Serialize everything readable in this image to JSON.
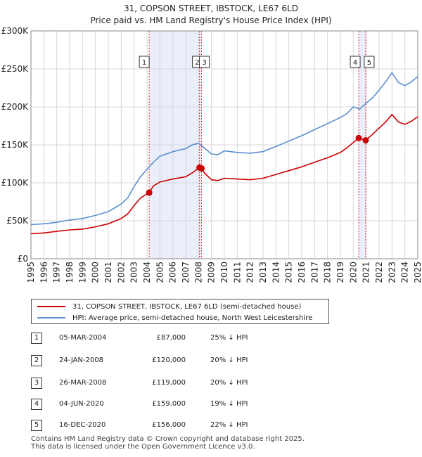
{
  "title": "31, COPSON STREET, IBSTOCK, LE67 6LD",
  "subtitle": "Price paid vs. HM Land Registry's House Price Index (HPI)",
  "legend": {
    "property": "31, COPSON STREET, IBSTOCK, LE67 6LD (semi-detached house)",
    "hpi": "HPI: Average price, semi-detached house, North West Leicestershire"
  },
  "colors": {
    "property": "#cc0000",
    "hpi": "#5b8fd0",
    "shade": "#e9eefa",
    "marker_line": "#dd3333"
  },
  "sales": [
    {
      "num": "1",
      "date": "05-MAR-2004",
      "price": "£87,000",
      "hpi": "25% ↓ HPI"
    },
    {
      "num": "2",
      "date": "24-JAN-2008",
      "price": "£120,000",
      "hpi": "20% ↓ HPI"
    },
    {
      "num": "3",
      "date": "26-MAR-2008",
      "price": "£119,000",
      "hpi": "20% ↓ HPI"
    },
    {
      "num": "4",
      "date": "04-JUN-2020",
      "price": "£159,000",
      "hpi": "19% ↓ HPI"
    },
    {
      "num": "5",
      "date": "16-DEC-2020",
      "price": "£156,000",
      "hpi": "22% ↓ HPI"
    }
  ],
  "footer": {
    "line1": "Contains HM Land Registry data © Crown copyright and database right 2025.",
    "line2": "This data is licensed under the Open Government Licence v3.0."
  },
  "chart_data": {
    "type": "line",
    "title": "31, COPSON STREET, IBSTOCK, LE67 6LD",
    "subtitle": "Price paid vs. HM Land Registry's House Price Index (HPI)",
    "xlim": [
      1995,
      2025
    ],
    "ylim": [
      0,
      300000
    ],
    "x_ticks": [
      1995,
      1996,
      1997,
      1998,
      1999,
      2000,
      2001,
      2002,
      2003,
      2004,
      2005,
      2006,
      2007,
      2008,
      2009,
      2010,
      2011,
      2012,
      2013,
      2014,
      2015,
      2016,
      2017,
      2018,
      2019,
      2020,
      2021,
      2022,
      2023,
      2024,
      2025
    ],
    "y_ticks": [
      {
        "value": 0,
        "label": "£0"
      },
      {
        "value": 50000,
        "label": "£50K"
      },
      {
        "value": 100000,
        "label": "£100K"
      },
      {
        "value": 150000,
        "label": "£150K"
      },
      {
        "value": 200000,
        "label": "£200K"
      },
      {
        "value": 250000,
        "label": "£250K"
      },
      {
        "value": 300000,
        "label": "£300K"
      }
    ],
    "shaded_ranges": [
      [
        2004.17,
        2008.23
      ],
      [
        2020.42,
        2020.96
      ]
    ],
    "sale_markers": [
      {
        "label": "1",
        "x": 2004.17,
        "y": 87000
      },
      {
        "label": "2",
        "x": 2008.07,
        "y": 120000
      },
      {
        "label": "3",
        "x": 2008.23,
        "y": 119000
      },
      {
        "label": "4",
        "x": 2020.42,
        "y": 159000
      },
      {
        "label": "5",
        "x": 2020.96,
        "y": 156000
      }
    ],
    "series": [
      {
        "name": "HPI: Average price, semi-detached house, North West Leicestershire",
        "color": "#5b8fd0",
        "x": [
          1995,
          1996,
          1997,
          1998,
          1999,
          2000,
          2001,
          2002,
          2002.5,
          2003,
          2003.5,
          2004,
          2004.5,
          2005,
          2006,
          2007,
          2007.5,
          2008,
          2008.5,
          2009,
          2009.5,
          2010,
          2011,
          2012,
          2013,
          2014,
          2015,
          2016,
          2017,
          2018,
          2019,
          2019.5,
          2020,
          2020.5,
          2021,
          2021.5,
          2022,
          2022.5,
          2023,
          2023.5,
          2024,
          2024.5,
          2025
        ],
        "y": [
          45000,
          46000,
          48000,
          51000,
          53000,
          57000,
          62000,
          72000,
          80000,
          95000,
          108000,
          118000,
          127000,
          135000,
          141000,
          145000,
          150000,
          152000,
          145000,
          138000,
          137000,
          142000,
          140000,
          139000,
          141000,
          148000,
          155000,
          162000,
          170000,
          178000,
          186000,
          191000,
          200000,
          197000,
          205000,
          212000,
          222000,
          233000,
          245000,
          232000,
          228000,
          233000,
          240000
        ]
      },
      {
        "name": "31, COPSON STREET, IBSTOCK, LE67 6LD (semi-detached house)",
        "color": "#cc0000",
        "x": [
          1995,
          1996,
          1997,
          1998,
          1999,
          2000,
          2001,
          2002,
          2002.5,
          2003,
          2003.5,
          2004.17,
          2004.5,
          2005,
          2006,
          2007,
          2007.5,
          2008.07,
          2008.23,
          2008.5,
          2009,
          2009.5,
          2010,
          2011,
          2012,
          2013,
          2014,
          2015,
          2016,
          2017,
          2018,
          2019,
          2019.5,
          2020.42,
          2020.96,
          2021.5,
          2022,
          2022.5,
          2023,
          2023.5,
          2024,
          2024.5,
          2025
        ],
        "y": [
          33000,
          34000,
          36000,
          38000,
          39000,
          42000,
          46000,
          53000,
          59000,
          70000,
          80000,
          87000,
          96000,
          101000,
          105000,
          108000,
          113000,
          120000,
          119000,
          112000,
          104000,
          103000,
          106000,
          105000,
          104000,
          106000,
          111000,
          116000,
          121000,
          127000,
          133000,
          140000,
          146000,
          159000,
          156000,
          164000,
          172000,
          180000,
          190000,
          180000,
          177000,
          181000,
          187000
        ]
      }
    ]
  }
}
